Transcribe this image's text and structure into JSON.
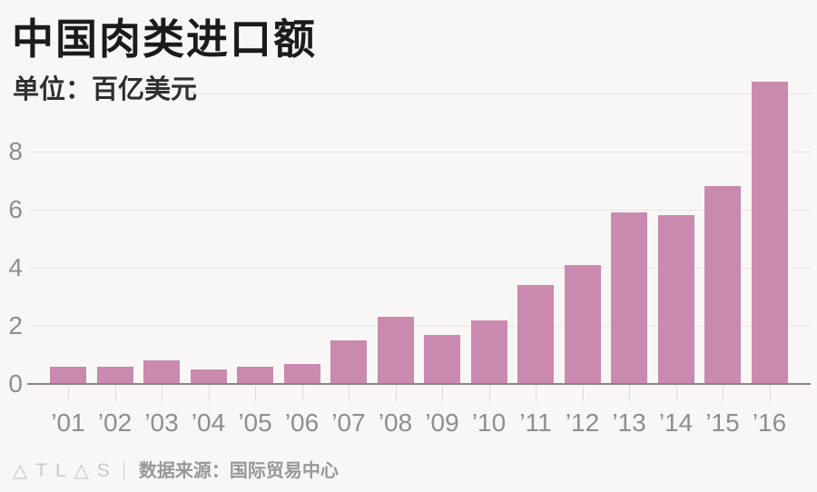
{
  "header": {
    "title": "中国肉类进口额",
    "subtitle": "单位：百亿美元"
  },
  "chart_data": {
    "type": "bar",
    "title": "中国肉类进口额",
    "unit_label": "单位：百亿美元",
    "categories": [
      "’01",
      "’02",
      "’03",
      "’04",
      "’05",
      "’06",
      "’07",
      "’08",
      "’09",
      "’10",
      "’11",
      "’12",
      "’13",
      "’14",
      "’15",
      "’16"
    ],
    "values": [
      0.6,
      0.6,
      0.8,
      0.5,
      0.6,
      0.7,
      1.5,
      2.3,
      1.7,
      2.2,
      3.4,
      4.1,
      5.9,
      5.8,
      6.8,
      10.4
    ],
    "xlabel": "",
    "ylabel": "",
    "yticks": [
      0,
      2,
      4,
      6,
      8
    ],
    "ymax_gridline": 10,
    "ylim": [
      0,
      10.5
    ],
    "grid": true,
    "legend": "none",
    "bar_color": "#ca89ae"
  },
  "footer": {
    "logo": {
      "text": "ATLAS",
      "glyphs": "△TL△S"
    },
    "source": "数据来源：国际贸易中心"
  },
  "colors": {
    "background": "#f8f7f5",
    "bar": "#ca89ae",
    "gridline": "#e9e6e6",
    "axis_line": "#8a8484",
    "axis_label_gray": "#8e8e8e",
    "title_text": "#1b1b1b",
    "subtitle_text": "#2f2f2f",
    "source_text": "#979797",
    "logo_gray": "#c9c9c9"
  }
}
